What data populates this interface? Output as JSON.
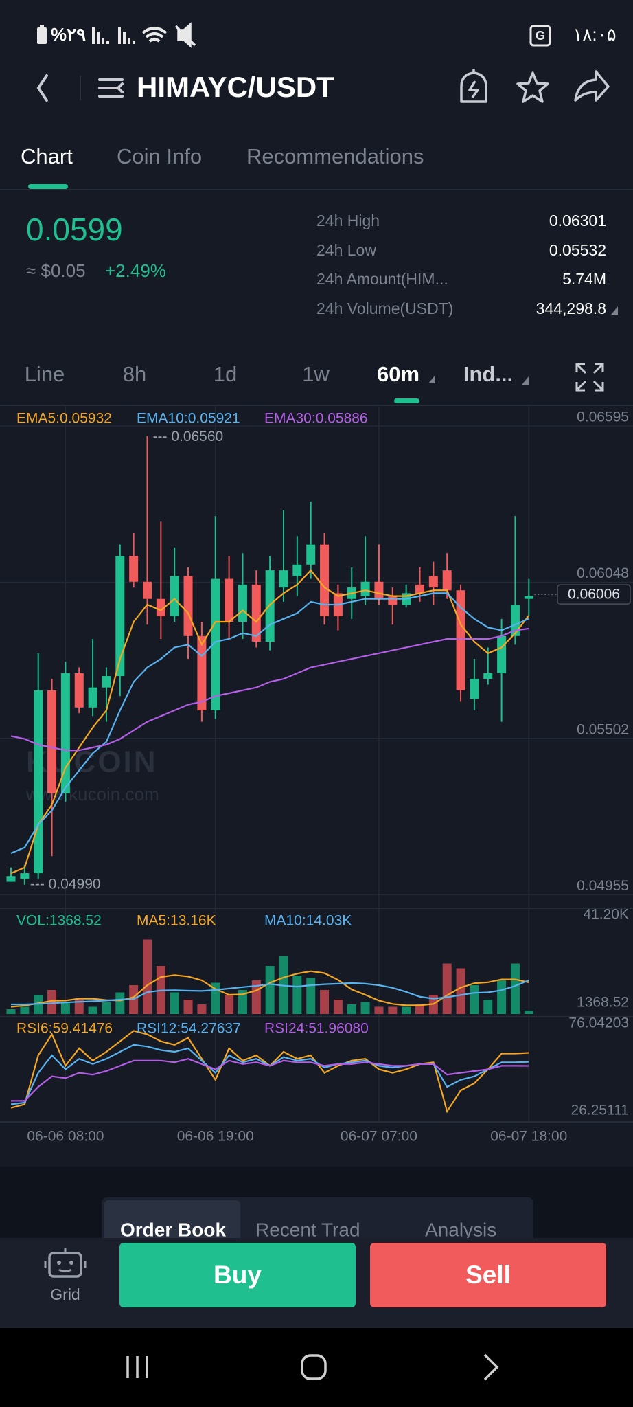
{
  "status_bar": {
    "battery": "%۲۹",
    "time": "۱۸:۰۵"
  },
  "header": {
    "pair": "HIMAYC/USDT"
  },
  "tabs": [
    "Chart",
    "Coin Info",
    "Recommendations"
  ],
  "ticker": {
    "price": "0.0599",
    "fiat": "≈ $0.05",
    "change": "+2.49%"
  },
  "stats": [
    {
      "label": "24h High",
      "value": "0.06301"
    },
    {
      "label": "24h Low",
      "value": "0.05532"
    },
    {
      "label": "24h Amount(HIM...",
      "value": "5.74M"
    },
    {
      "label": "24h Volume(USDT)",
      "value": "344,298.8"
    }
  ],
  "intervals": [
    "Line",
    "8h",
    "1d",
    "1w",
    "60m",
    "Ind..."
  ],
  "chart_data": [
    {
      "type": "candlestick",
      "open": [
        0.05,
        0.0501,
        0.0503,
        0.0567,
        0.0531,
        0.0573,
        0.0561,
        0.0568,
        0.0572,
        0.0614,
        0.0605,
        0.0599,
        0.0593,
        0.0607,
        0.0586,
        0.056,
        0.0606,
        0.0591,
        0.0604,
        0.0584,
        0.0603,
        0.0607,
        0.0611,
        0.0618,
        0.0601,
        0.0599,
        0.06,
        0.0605,
        0.06,
        0.0597,
        0.0604,
        0.0607,
        0.0609,
        0.0602,
        0.0564,
        0.0571,
        0.0573,
        0.0586,
        0.0599
      ],
      "high": [
        0.0505,
        0.0506,
        0.058,
        0.0571,
        0.0577,
        0.0575,
        0.0585,
        0.0575,
        0.0618,
        0.0622,
        0.0656,
        0.0626,
        0.0617,
        0.061,
        0.0591,
        0.0628,
        0.0614,
        0.0615,
        0.0609,
        0.0614,
        0.063,
        0.0621,
        0.0633,
        0.0622,
        0.0604,
        0.061,
        0.0621,
        0.0618,
        0.0603,
        0.0604,
        0.061,
        0.0612,
        0.0615,
        0.0604,
        0.0578,
        0.0582,
        0.0592,
        0.0628,
        0.0606
      ],
      "low": [
        0.05,
        0.0499,
        0.0501,
        0.0509,
        0.0528,
        0.0559,
        0.0558,
        0.0556,
        0.0565,
        0.0603,
        0.059,
        0.0585,
        0.0591,
        0.0578,
        0.0556,
        0.0557,
        0.0585,
        0.0585,
        0.0582,
        0.0581,
        0.0598,
        0.06,
        0.0606,
        0.059,
        0.0588,
        0.0592,
        0.0597,
        0.0597,
        0.059,
        0.0596,
        0.0598,
        0.0597,
        0.0599,
        0.0563,
        0.056,
        0.0569,
        0.0556,
        0.0583,
        0.0593
      ],
      "close": [
        0.0502,
        0.0503,
        0.0567,
        0.0531,
        0.0573,
        0.0561,
        0.0568,
        0.0572,
        0.0614,
        0.0605,
        0.0599,
        0.0593,
        0.0607,
        0.0586,
        0.056,
        0.0606,
        0.0591,
        0.0604,
        0.0584,
        0.0609,
        0.0609,
        0.0611,
        0.0618,
        0.0593,
        0.0593,
        0.0603,
        0.0605,
        0.0599,
        0.0597,
        0.0601,
        0.0601,
        0.0603,
        0.0602,
        0.0567,
        0.0571,
        0.0573,
        0.0586,
        0.0597,
        0.06
      ],
      "up_color": "#1fbf8f",
      "down_color": "#f25b5b",
      "series": [
        {
          "name": "EMA5:0.05932",
          "color": "#f5a623",
          "values": [
            0.0503,
            0.0505,
            0.052,
            0.0527,
            0.054,
            0.0547,
            0.0554,
            0.056,
            0.0578,
            0.0591,
            0.0597,
            0.0595,
            0.0599,
            0.0594,
            0.0583,
            0.0591,
            0.0591,
            0.0595,
            0.0591,
            0.0597,
            0.0601,
            0.0604,
            0.0609,
            0.0603,
            0.06,
            0.0601,
            0.0602,
            0.0601,
            0.06,
            0.06,
            0.0601,
            0.0602,
            0.0602,
            0.059,
            0.0584,
            0.058,
            0.0582,
            0.0587,
            0.05932
          ]
        },
        {
          "name": "EMA10:0.05921",
          "color": "#58b3f0",
          "values": [
            0.051,
            0.0512,
            0.052,
            0.0525,
            0.0533,
            0.0539,
            0.0545,
            0.0549,
            0.056,
            0.057,
            0.0575,
            0.0578,
            0.0582,
            0.0583,
            0.0579,
            0.0584,
            0.0585,
            0.0587,
            0.0586,
            0.059,
            0.0592,
            0.0594,
            0.0598,
            0.0597,
            0.0597,
            0.0598,
            0.0599,
            0.0599,
            0.0599,
            0.0599,
            0.06,
            0.0601,
            0.0601,
            0.0596,
            0.0592,
            0.0589,
            0.0588,
            0.059,
            0.05921
          ]
        },
        {
          "name": "EMA30:0.05886",
          "color": "#b55ee8",
          "values": [
            0.0551,
            0.055,
            0.0548,
            0.0547,
            0.0546,
            0.0546,
            0.0547,
            0.0548,
            0.055,
            0.0553,
            0.0556,
            0.0558,
            0.056,
            0.0562,
            0.0563,
            0.0565,
            0.0566,
            0.0567,
            0.0568,
            0.057,
            0.0571,
            0.0573,
            0.0575,
            0.0576,
            0.0577,
            0.0578,
            0.0579,
            0.058,
            0.0581,
            0.0582,
            0.0583,
            0.0584,
            0.0585,
            0.0585,
            0.0585,
            0.0585,
            0.0586,
            0.0588,
            0.05886
          ]
        }
      ],
      "ylim": [
        0.0491,
        0.0666
      ],
      "yticks": [
        0.06595,
        0.06048,
        0.05502,
        0.04955
      ],
      "last_price": 0.06006,
      "annotations": [
        {
          "value": 0.0656,
          "label": "--- 0.06560"
        },
        {
          "value": 0.0499,
          "label": "--- 0.04990"
        }
      ],
      "watermark": [
        "KUCOIN",
        "www.kucoin.com"
      ],
      "grid": true
    },
    {
      "type": "bar",
      "up_color": "#138a68",
      "down_color": "#a8404a",
      "series": [
        {
          "name": "VOL:1368.52",
          "values": [
            2000,
            3000,
            8000,
            10000,
            5000,
            6000,
            3000,
            5000,
            9000,
            12000,
            31000,
            20000,
            9000,
            6000,
            4000,
            13000,
            8000,
            10000,
            14000,
            20000,
            24000,
            16000,
            15000,
            10000,
            6000,
            4000,
            5000,
            3000,
            3000,
            3000,
            4000,
            8000,
            21000,
            19000,
            12000,
            6000,
            14000,
            21000,
            1368.52
          ]
        },
        {
          "name": "MA5:13.16K",
          "color": "#f5a623",
          "values": [
            3000,
            3500,
            4500,
            5500,
            5600,
            6400,
            6400,
            5800,
            5600,
            7000,
            12000,
            15400,
            16200,
            15600,
            14000,
            10400,
            8000,
            8200,
            9800,
            13000,
            15200,
            16800,
            17800,
            17000,
            14200,
            10200,
            8000,
            5600,
            4200,
            3600,
            3600,
            4200,
            7800,
            11000,
            12800,
            13200,
            14400,
            14400,
            13160
          ]
        },
        {
          "name": "MA10:14.03K",
          "color": "#58b3f0",
          "values": [
            4000,
            4000,
            4200,
            4500,
            4800,
            5100,
            5300,
            5600,
            6000,
            6300,
            9100,
            9800,
            9900,
            9700,
            9600,
            10000,
            10600,
            11200,
            11700,
            12500,
            11800,
            11400,
            12000,
            12400,
            12600,
            12900,
            12600,
            12000,
            10900,
            9200,
            7200,
            6400,
            7000,
            7900,
            8800,
            9000,
            9900,
            11700,
            14030
          ]
        }
      ],
      "ylim": [
        0,
        44000
      ],
      "yticks": [
        {
          "value": 41200,
          "label": "41.20K"
        }
      ]
    },
    {
      "type": "line",
      "categories": [
        null,
        null,
        null,
        null,
        "06-06 08:00",
        null,
        null,
        null,
        null,
        null,
        null,
        null,
        null,
        null,
        null,
        "06-06 19:00",
        null,
        null,
        null,
        null,
        null,
        null,
        null,
        null,
        null,
        null,
        null,
        "06-07 07:00",
        null,
        null,
        null,
        null,
        null,
        null,
        null,
        null,
        null,
        null,
        "06-07 18:00"
      ],
      "series": [
        {
          "name": "RSI6:59.41476",
          "color": "#f5a623",
          "values": [
            28,
            30,
            58,
            70,
            52,
            62,
            55,
            60,
            66,
            72,
            70,
            66,
            64,
            68,
            56,
            44,
            62,
            55,
            58,
            52,
            60,
            56,
            58,
            48,
            52,
            55,
            56,
            50,
            48,
            50,
            53,
            54,
            26,
            38,
            42,
            50,
            59,
            59,
            59.41476
          ]
        },
        {
          "name": "RSI12:54.27637",
          "color": "#58b3f0",
          "values": [
            30,
            31,
            48,
            58,
            50,
            56,
            53,
            56,
            60,
            64,
            63,
            61,
            60,
            62,
            55,
            48,
            58,
            54,
            56,
            52,
            57,
            55,
            56,
            51,
            53,
            54,
            55,
            52,
            51,
            52,
            53,
            53,
            40,
            44,
            46,
            50,
            54,
            54,
            54.27637
          ]
        },
        {
          "name": "RSI24:51.96080",
          "color": "#b55ee8",
          "values": [
            32,
            32,
            40,
            46,
            45,
            48,
            47,
            49,
            52,
            55,
            55,
            55,
            54,
            56,
            53,
            50,
            55,
            53,
            54,
            52,
            55,
            54,
            54,
            52,
            53,
            53,
            54,
            53,
            52,
            52,
            53,
            53,
            47,
            48,
            49,
            50,
            52,
            52,
            51.9608
          ]
        }
      ],
      "ylim": [
        20,
        80
      ],
      "yticks": [
        76.04203,
        26.25111
      ]
    }
  ],
  "order_tabs": [
    "Order Book",
    "Recent Trad",
    "Analysis"
  ],
  "bottom_bar": {
    "grid": "Grid",
    "buy": "Buy",
    "sell": "Sell"
  }
}
